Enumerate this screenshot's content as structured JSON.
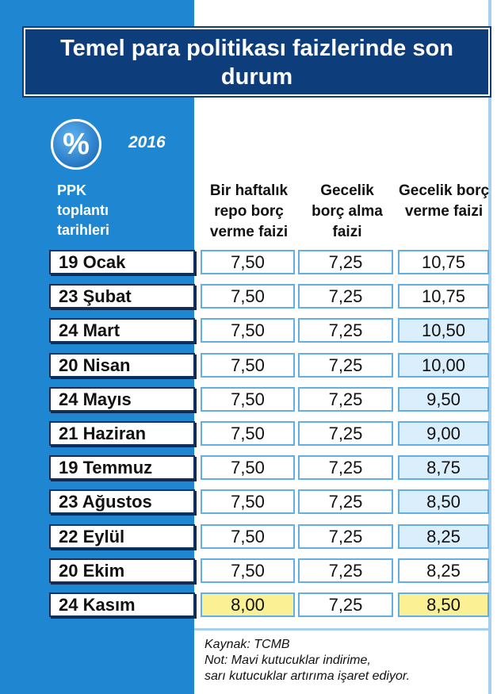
{
  "header": {
    "title": "Temel para politikası faizlerinde son durum",
    "icon": "%",
    "year": "2016"
  },
  "table": {
    "columns": [
      "PPK toplantı tarihleri",
      "Bir haftalık repo borç verme faizi",
      "Gecelik borç alma faizi",
      "Gecelik borç verme faizi"
    ],
    "rows": [
      [
        "19 Ocak",
        "7,50",
        "7,25",
        "10,75"
      ],
      [
        "23 Şubat",
        "7,50",
        "7,25",
        "10,75"
      ],
      [
        "24 Mart",
        "7,50",
        "7,25",
        "10,50"
      ],
      [
        "20 Nisan",
        "7,50",
        "7,25",
        "10,00"
      ],
      [
        "24 Mayıs",
        "7,50",
        "7,25",
        "9,50"
      ],
      [
        "21 Haziran",
        "7,50",
        "7,25",
        "9,00"
      ],
      [
        "19 Temmuz",
        "7,50",
        "7,25",
        "8,75"
      ],
      [
        "23 Ağustos",
        "7,50",
        "7,25",
        "8,50"
      ],
      [
        "22 Eylül",
        "7,50",
        "7,25",
        "8,25"
      ],
      [
        "20 Ekim",
        "7,50",
        "7,25",
        "8,25"
      ],
      [
        "24 Kasım",
        "8,00",
        "7,25",
        "8,50"
      ]
    ]
  },
  "footer": {
    "lines": [
      "Kaynak: TCMB",
      "Not: Mavi kutucuklar indirime,",
      "sarı kutucuklar artırıma işaret ediyor."
    ]
  }
}
